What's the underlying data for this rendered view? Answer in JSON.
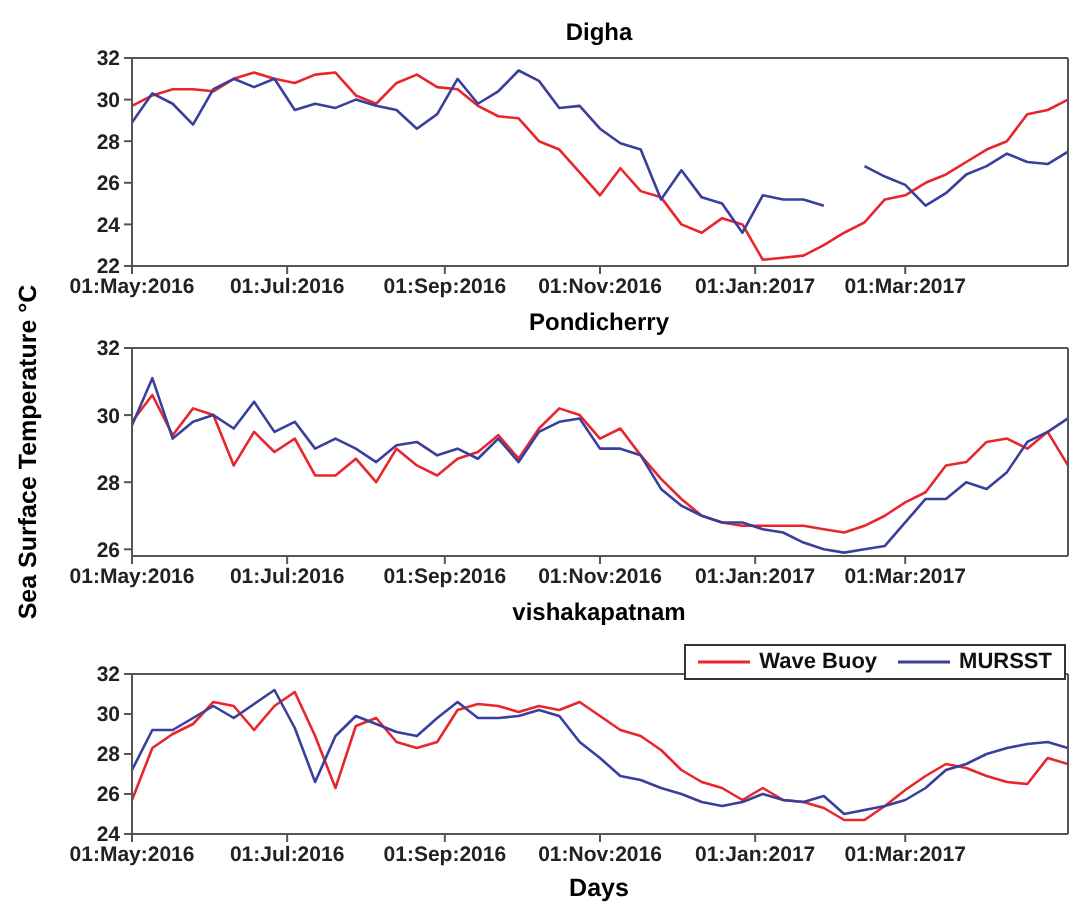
{
  "chart_data": [
    {
      "type": "line",
      "title": "Digha",
      "xlim": [
        "2016-05-01",
        "2017-05-04"
      ],
      "ylim": [
        22,
        32
      ],
      "yticks": [
        22,
        24,
        26,
        28,
        30,
        32
      ],
      "xticks": [
        {
          "value": "2016-05-01",
          "label": "01:May:2016"
        },
        {
          "value": "2016-07-01",
          "label": "01:Jul:2016"
        },
        {
          "value": "2016-09-01",
          "label": "01:Sep:2016"
        },
        {
          "value": "2016-11-01",
          "label": "01:Nov:2016"
        },
        {
          "value": "2017-01-01",
          "label": "01:Jan:2017"
        },
        {
          "value": "2017-03-01",
          "label": "01:Mar:2017"
        }
      ],
      "x": [
        "2016-05-01",
        "2016-05-09",
        "2016-05-17",
        "2016-05-25",
        "2016-06-02",
        "2016-06-10",
        "2016-06-18",
        "2016-06-26",
        "2016-07-04",
        "2016-07-12",
        "2016-07-20",
        "2016-07-28",
        "2016-08-05",
        "2016-08-13",
        "2016-08-21",
        "2016-08-29",
        "2016-09-06",
        "2016-09-14",
        "2016-09-22",
        "2016-09-30",
        "2016-10-08",
        "2016-10-16",
        "2016-10-24",
        "2016-11-01",
        "2016-11-09",
        "2016-11-17",
        "2016-11-25",
        "2016-12-03",
        "2016-12-11",
        "2016-12-19",
        "2016-12-27",
        "2017-01-04",
        "2017-01-12",
        "2017-01-20",
        "2017-01-28",
        "2017-02-05",
        "2017-02-13",
        "2017-02-21",
        "2017-03-01",
        "2017-03-09",
        "2017-03-17",
        "2017-03-25",
        "2017-04-02",
        "2017-04-10",
        "2017-04-18",
        "2017-04-26",
        "2017-05-04"
      ],
      "series": [
        {
          "color": "#e8262b",
          "values": [
            29.7,
            30.2,
            30.5,
            30.5,
            30.4,
            31.0,
            31.3,
            31.0,
            30.8,
            31.2,
            31.3,
            30.2,
            29.8,
            30.8,
            31.2,
            30.6,
            30.5,
            29.7,
            29.2,
            29.1,
            28.0,
            27.6,
            26.5,
            25.4,
            26.7,
            25.6,
            25.3,
            24.0,
            23.6,
            24.3,
            24.0,
            22.3,
            22.4,
            22.5,
            23.0,
            23.6,
            24.1,
            25.2,
            25.4,
            26.0,
            26.4,
            27.0,
            27.6,
            28.0,
            29.3,
            29.5,
            30.0
          ]
        },
        {
          "color": "#3a3f9e",
          "values": [
            28.9,
            30.3,
            29.8,
            28.8,
            30.5,
            31.0,
            30.6,
            31.0,
            29.5,
            29.8,
            29.6,
            30.0,
            29.7,
            29.5,
            28.6,
            29.3,
            31.0,
            29.8,
            30.4,
            31.4,
            30.9,
            29.6,
            29.7,
            28.6,
            27.9,
            27.6,
            25.2,
            26.6,
            25.3,
            25.0,
            23.6,
            25.4,
            25.2,
            25.2,
            24.9,
            null,
            26.8,
            26.3,
            25.9,
            24.9,
            25.5,
            26.4,
            26.8,
            27.4,
            27.0,
            26.9,
            27.5
          ]
        }
      ]
    },
    {
      "type": "line",
      "title": "Pondicherry",
      "ylabel": "Sea Surface Temperature °C",
      "xlim": [
        "2016-05-01",
        "2017-05-04"
      ],
      "ylim": [
        25.8,
        32
      ],
      "yticks": [
        26,
        28,
        30,
        32
      ],
      "xticks": [
        {
          "value": "2016-05-01",
          "label": "01:May:2016"
        },
        {
          "value": "2016-07-01",
          "label": "01:Jul:2016"
        },
        {
          "value": "2016-09-01",
          "label": "01:Sep:2016"
        },
        {
          "value": "2016-11-01",
          "label": "01:Nov:2016"
        },
        {
          "value": "2017-01-01",
          "label": "01:Jan:2017"
        },
        {
          "value": "2017-03-01",
          "label": "01:Mar:2017"
        }
      ],
      "x": [
        "2016-05-01",
        "2016-05-09",
        "2016-05-17",
        "2016-05-25",
        "2016-06-02",
        "2016-06-10",
        "2016-06-18",
        "2016-06-26",
        "2016-07-04",
        "2016-07-12",
        "2016-07-20",
        "2016-07-28",
        "2016-08-05",
        "2016-08-13",
        "2016-08-21",
        "2016-08-29",
        "2016-09-06",
        "2016-09-14",
        "2016-09-22",
        "2016-09-30",
        "2016-10-08",
        "2016-10-16",
        "2016-10-24",
        "2016-11-01",
        "2016-11-09",
        "2016-11-17",
        "2016-11-25",
        "2016-12-03",
        "2016-12-11",
        "2016-12-19",
        "2016-12-27",
        "2017-01-04",
        "2017-01-12",
        "2017-01-20",
        "2017-01-28",
        "2017-02-05",
        "2017-02-13",
        "2017-02-21",
        "2017-03-01",
        "2017-03-09",
        "2017-03-17",
        "2017-03-25",
        "2017-04-02",
        "2017-04-10",
        "2017-04-18",
        "2017-04-26",
        "2017-05-04"
      ],
      "series": [
        {
          "color": "#e8262b",
          "values": [
            29.8,
            30.6,
            29.4,
            30.2,
            30.0,
            28.5,
            29.5,
            28.9,
            29.3,
            28.2,
            28.2,
            28.7,
            28.0,
            29.0,
            28.5,
            28.2,
            28.7,
            28.9,
            29.4,
            28.7,
            29.6,
            30.2,
            30.0,
            29.3,
            29.6,
            28.8,
            28.1,
            27.5,
            27.0,
            26.8,
            26.7,
            26.7,
            26.7,
            26.7,
            26.6,
            26.5,
            26.7,
            27.0,
            27.4,
            27.7,
            28.5,
            28.6,
            29.2,
            29.3,
            29.0,
            29.5,
            28.5
          ]
        },
        {
          "color": "#3a3f9e",
          "values": [
            29.7,
            31.1,
            29.3,
            29.8,
            30.0,
            29.6,
            30.4,
            29.5,
            29.8,
            29.0,
            29.3,
            29.0,
            28.6,
            29.1,
            29.2,
            28.8,
            29.0,
            28.7,
            29.3,
            28.6,
            29.5,
            29.8,
            29.9,
            29.0,
            29.0,
            28.8,
            27.8,
            27.3,
            27.0,
            26.8,
            26.8,
            26.6,
            26.5,
            26.2,
            26.0,
            25.9,
            26.0,
            26.1,
            26.8,
            27.5,
            27.5,
            28.0,
            27.8,
            28.3,
            29.2,
            29.5,
            29.9
          ]
        }
      ]
    },
    {
      "type": "line",
      "title": "vishakapatnam",
      "xlabel": "Days",
      "legend": "top right",
      "xlim": [
        "2016-05-01",
        "2017-05-04"
      ],
      "ylim": [
        24,
        32
      ],
      "yticks": [
        24,
        26,
        28,
        30,
        32
      ],
      "xticks": [
        {
          "value": "2016-05-01",
          "label": "01:May:2016"
        },
        {
          "value": "2016-07-01",
          "label": "01:Jul:2016"
        },
        {
          "value": "2016-09-01",
          "label": "01:Sep:2016"
        },
        {
          "value": "2016-11-01",
          "label": "01:Nov:2016"
        },
        {
          "value": "2017-01-01",
          "label": "01:Jan:2017"
        },
        {
          "value": "2017-03-01",
          "label": "01:Mar:2017"
        }
      ],
      "x": [
        "2016-05-01",
        "2016-05-09",
        "2016-05-17",
        "2016-05-25",
        "2016-06-02",
        "2016-06-10",
        "2016-06-18",
        "2016-06-26",
        "2016-07-04",
        "2016-07-12",
        "2016-07-20",
        "2016-07-28",
        "2016-08-05",
        "2016-08-13",
        "2016-08-21",
        "2016-08-29",
        "2016-09-06",
        "2016-09-14",
        "2016-09-22",
        "2016-09-30",
        "2016-10-08",
        "2016-10-16",
        "2016-10-24",
        "2016-11-01",
        "2016-11-09",
        "2016-11-17",
        "2016-11-25",
        "2016-12-03",
        "2016-12-11",
        "2016-12-19",
        "2016-12-27",
        "2017-01-04",
        "2017-01-12",
        "2017-01-20",
        "2017-01-28",
        "2017-02-05",
        "2017-02-13",
        "2017-02-21",
        "2017-03-01",
        "2017-03-09",
        "2017-03-17",
        "2017-03-25",
        "2017-04-02",
        "2017-04-10",
        "2017-04-18",
        "2017-04-26",
        "2017-05-04"
      ],
      "series": [
        {
          "name": "Wave Buoy",
          "color": "#e8262b",
          "values": [
            25.7,
            28.3,
            29.0,
            29.5,
            30.6,
            30.4,
            29.2,
            30.4,
            31.1,
            28.9,
            26.3,
            29.4,
            29.8,
            28.6,
            28.3,
            28.6,
            30.2,
            30.5,
            30.4,
            30.1,
            30.4,
            30.2,
            30.6,
            29.9,
            29.2,
            28.9,
            28.2,
            27.2,
            26.6,
            26.3,
            25.7,
            26.3,
            25.7,
            25.6,
            25.3,
            24.7,
            24.7,
            25.4,
            26.2,
            26.9,
            27.5,
            27.3,
            26.9,
            26.6,
            26.5,
            27.8,
            27.5
          ]
        },
        {
          "name": "MURSST",
          "color": "#3a3f9e",
          "values": [
            27.2,
            29.2,
            29.2,
            29.8,
            30.4,
            29.8,
            30.5,
            31.2,
            29.3,
            26.6,
            28.9,
            29.9,
            29.5,
            29.1,
            28.9,
            29.8,
            30.6,
            29.8,
            29.8,
            29.9,
            30.2,
            29.9,
            28.6,
            27.8,
            26.9,
            26.7,
            26.3,
            26.0,
            25.6,
            25.4,
            25.6,
            26.0,
            25.7,
            25.6,
            25.9,
            25.0,
            25.2,
            25.4,
            25.7,
            26.3,
            27.2,
            27.5,
            28.0,
            28.3,
            28.5,
            28.6,
            28.3
          ]
        }
      ]
    }
  ]
}
